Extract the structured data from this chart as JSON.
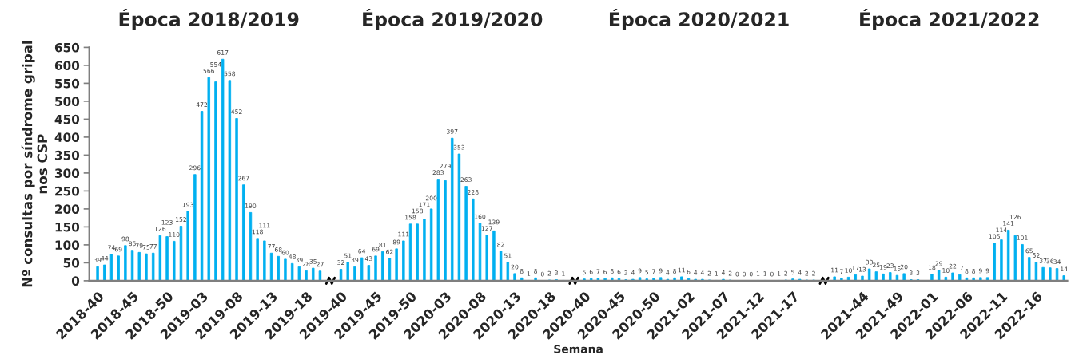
{
  "chart_data": {
    "type": "bar",
    "annotations": [
      "Época 2018/2019",
      "Época 2019/2020",
      "Época 2020/2021",
      "Época 2021/2022"
    ],
    "xlabel": "Semana",
    "ylabel": "Nº consultas por síndrome gripal\nnos CSP",
    "categories": [
      "2018-40",
      null,
      null,
      null,
      null,
      "2018-45",
      null,
      null,
      null,
      null,
      "2018-50",
      null,
      null,
      null,
      null,
      "2019-03",
      null,
      null,
      null,
      null,
      "2019-08",
      null,
      null,
      null,
      null,
      "2019-13",
      null,
      null,
      null,
      null,
      "2019-18",
      null,
      null,
      null,
      null,
      "2019-40",
      null,
      null,
      null,
      null,
      "2019-45",
      null,
      null,
      null,
      null,
      "2019-50",
      null,
      null,
      null,
      null,
      "2020-03",
      null,
      null,
      null,
      null,
      "2020-08",
      null,
      null,
      null,
      null,
      "2020-13",
      null,
      null,
      null,
      null,
      "2020-18",
      null,
      null,
      null,
      null,
      "2020-40",
      null,
      null,
      null,
      null,
      "2020-45",
      null,
      null,
      null,
      null,
      "2020-50",
      null,
      null,
      null,
      null,
      "2021-02",
      null,
      null,
      null,
      null,
      "2021-07",
      null,
      null,
      null,
      null,
      "2021-12",
      null,
      null,
      null,
      null,
      "2021-17",
      null,
      null,
      null,
      null,
      null,
      null,
      null,
      null,
      null,
      "2021-44",
      null,
      null,
      null,
      null,
      "2021-49",
      null,
      null,
      null,
      null,
      "2022-01",
      null,
      null,
      null,
      null,
      "2022-06",
      null,
      null,
      null,
      null,
      "2022-11",
      null,
      null,
      null,
      null,
      "2022-16",
      null,
      null,
      null,
      null
    ],
    "values": [
      39,
      44,
      74,
      69,
      98,
      85,
      79,
      75,
      77,
      126,
      123,
      110,
      152,
      193,
      296,
      472,
      566,
      554,
      617,
      558,
      452,
      267,
      190,
      118,
      111,
      77,
      68,
      60,
      48,
      39,
      28,
      35,
      27,
      null,
      null,
      32,
      51,
      39,
      64,
      43,
      69,
      81,
      62,
      89,
      111,
      158,
      158,
      171,
      200,
      283,
      279,
      397,
      353,
      263,
      228,
      160,
      127,
      139,
      82,
      51,
      20,
      8,
      1,
      8,
      0,
      2,
      3,
      1,
      null,
      null,
      5,
      6,
      7,
      6,
      8,
      6,
      3,
      4,
      9,
      5,
      7,
      9,
      4,
      8,
      11,
      6,
      4,
      4,
      2,
      1,
      4,
      2,
      0,
      0,
      0,
      1,
      1,
      0,
      1,
      2,
      5,
      4,
      2,
      2,
      null,
      null,
      11,
      7,
      10,
      17,
      13,
      33,
      25,
      19,
      23,
      15,
      20,
      3,
      3,
      null,
      18,
      29,
      10,
      22,
      17,
      8,
      8,
      9,
      9,
      105,
      114,
      141,
      126,
      101,
      65,
      52,
      37,
      36,
      34,
      14
    ],
    "color": "#00b0f0",
    "ylim": [
      0,
      650
    ],
    "yticks": [
      0,
      50,
      100,
      150,
      200,
      250,
      300,
      350,
      400,
      450,
      500,
      550,
      600,
      650
    ],
    "data_labels": true,
    "grid": false,
    "legend": false
  }
}
